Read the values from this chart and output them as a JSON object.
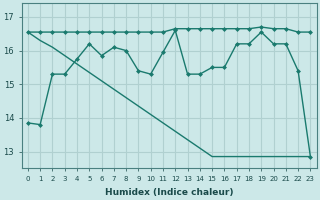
{
  "xlabel": "Humidex (Indice chaleur)",
  "background_color": "#cce8e8",
  "grid_color": "#b0d0d0",
  "line_color": "#1a7a6e",
  "xlim": [
    -0.5,
    23.5
  ],
  "ylim": [
    12.5,
    17.4
  ],
  "yticks": [
    13,
    14,
    15,
    16,
    17
  ],
  "xticks": [
    0,
    1,
    2,
    3,
    4,
    5,
    6,
    7,
    8,
    9,
    10,
    11,
    12,
    13,
    14,
    15,
    16,
    17,
    18,
    19,
    20,
    21,
    22,
    23
  ],
  "series1_x": [
    0,
    1,
    2,
    3,
    4,
    5,
    6,
    7,
    8,
    9,
    10,
    11,
    12,
    13,
    14,
    15,
    16,
    17,
    18,
    19,
    20,
    21,
    22,
    23
  ],
  "series1_y": [
    13.85,
    13.8,
    15.3,
    15.3,
    15.75,
    16.2,
    15.85,
    16.1,
    16.0,
    15.4,
    15.3,
    15.95,
    16.6,
    15.3,
    15.3,
    15.5,
    15.5,
    16.2,
    16.2,
    16.55,
    16.2,
    16.2,
    15.4,
    12.85
  ],
  "series2_full_x": [
    0,
    1,
    2,
    3,
    4,
    5,
    6,
    7,
    8,
    9,
    10,
    11,
    12,
    13,
    14,
    15,
    16,
    17,
    18,
    19,
    20,
    21,
    22,
    23
  ],
  "series2_full_y": [
    16.55,
    16.55,
    16.55,
    16.55,
    16.55,
    16.55,
    16.55,
    16.55,
    16.55,
    16.55,
    16.55,
    16.55,
    16.65,
    16.65,
    16.65,
    16.65,
    16.65,
    16.65,
    16.65,
    16.7,
    16.65,
    16.65,
    16.55,
    16.55
  ],
  "series3_x": [
    0,
    1,
    2,
    3,
    4,
    5,
    6,
    7,
    8,
    9,
    10,
    11,
    12,
    13,
    14,
    15,
    16,
    17,
    18,
    19,
    20,
    21,
    22,
    23
  ],
  "series3_y": [
    16.55,
    16.3,
    16.1,
    15.85,
    15.6,
    15.35,
    15.1,
    14.85,
    14.6,
    14.35,
    14.1,
    13.85,
    13.6,
    13.35,
    13.1,
    12.85,
    12.85,
    12.85,
    12.85,
    12.85,
    12.85,
    12.85,
    12.85,
    12.85
  ]
}
